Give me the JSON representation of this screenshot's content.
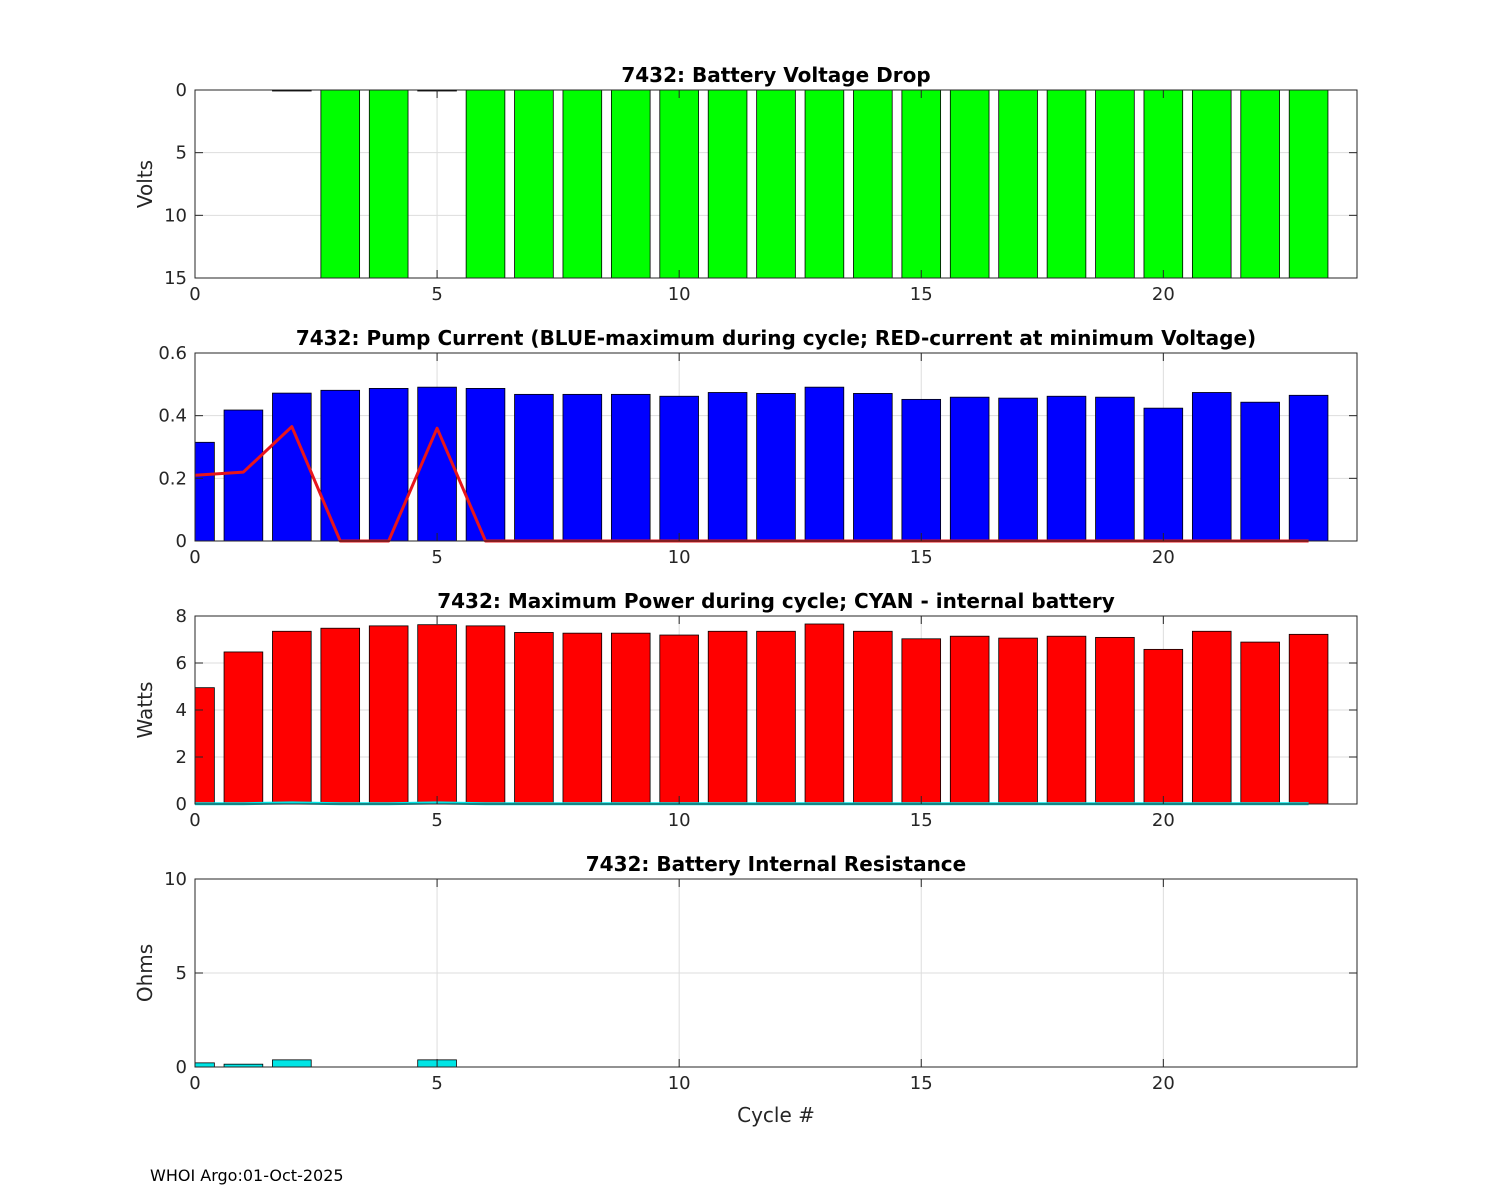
{
  "footer": "WHOI Argo:01-Oct-2025",
  "colors": {
    "voltage": "#00ff00",
    "pump": "#0000ff",
    "pump_line": "#e8151b",
    "power": "#ff0000",
    "power_line": "#00e5e5",
    "resistance": "#00e5e5",
    "grid": "#dddddd",
    "axis": "#262626"
  },
  "chart_data": [
    {
      "id": "voltage",
      "type": "bar",
      "title": "7432: Battery Voltage Drop",
      "xlabel": "",
      "ylabel": "Volts",
      "xlim": [
        0,
        24
      ],
      "ylim": [
        0,
        15
      ],
      "y_reversed": true,
      "xticks": [
        0,
        5,
        10,
        15,
        20
      ],
      "yticks": [
        0,
        5,
        10,
        15
      ],
      "grid": true,
      "x": [
        0,
        1,
        2,
        3,
        4,
        5,
        6,
        7,
        8,
        9,
        10,
        11,
        12,
        13,
        14,
        15,
        16,
        17,
        18,
        19,
        20,
        21,
        22,
        23
      ],
      "values": [
        0,
        0,
        0.05,
        15,
        15,
        0.05,
        15,
        15,
        15,
        15,
        15,
        15,
        15,
        15,
        15,
        15,
        15,
        15,
        15,
        15,
        15,
        15,
        15,
        15
      ]
    },
    {
      "id": "pump",
      "type": "bar",
      "title": "7432: Pump Current (BLUE-maximum during cycle; RED-current at minimum Voltage)",
      "xlabel": "",
      "ylabel": "",
      "xlim": [
        0,
        24
      ],
      "ylim": [
        0,
        0.6
      ],
      "xticks": [
        0,
        5,
        10,
        15,
        20
      ],
      "yticks": [
        0,
        0.2,
        0.4,
        0.6
      ],
      "ytick_labels": [
        "0",
        "0.2",
        "0.4",
        "0.6"
      ],
      "grid": true,
      "x": [
        0,
        1,
        2,
        3,
        4,
        5,
        6,
        7,
        8,
        9,
        10,
        11,
        12,
        13,
        14,
        15,
        16,
        17,
        18,
        19,
        20,
        21,
        22,
        23
      ],
      "values": [
        0.315,
        0.418,
        0.472,
        0.481,
        0.487,
        0.491,
        0.487,
        0.468,
        0.468,
        0.468,
        0.462,
        0.474,
        0.471,
        0.491,
        0.471,
        0.452,
        0.459,
        0.456,
        0.462,
        0.459,
        0.424,
        0.474,
        0.443,
        0.465
      ],
      "line": {
        "name": "current at minimum Voltage",
        "values": [
          0.21,
          0.22,
          0.365,
          0,
          0,
          0.36,
          0,
          0,
          0,
          0,
          0,
          0,
          0,
          0,
          0,
          0,
          0,
          0,
          0,
          0,
          0,
          0,
          0,
          0
        ]
      }
    },
    {
      "id": "power",
      "type": "bar",
      "title": "7432: Maximum Power during cycle; CYAN - internal battery",
      "xlabel": "",
      "ylabel": "Watts",
      "xlim": [
        0,
        24
      ],
      "ylim": [
        0,
        8
      ],
      "xticks": [
        0,
        5,
        10,
        15,
        20
      ],
      "yticks": [
        0,
        2,
        4,
        6,
        8
      ],
      "grid": true,
      "x": [
        0,
        1,
        2,
        3,
        4,
        5,
        6,
        7,
        8,
        9,
        10,
        11,
        12,
        13,
        14,
        15,
        16,
        17,
        18,
        19,
        20,
        21,
        22,
        23
      ],
      "values": [
        4.95,
        6.47,
        7.35,
        7.48,
        7.58,
        7.63,
        7.58,
        7.3,
        7.27,
        7.27,
        7.19,
        7.35,
        7.35,
        7.66,
        7.35,
        7.03,
        7.14,
        7.06,
        7.14,
        7.09,
        6.58,
        7.35,
        6.89,
        7.22
      ],
      "line": {
        "name": "internal battery",
        "values": [
          0.01,
          0.01,
          0.05,
          0.01,
          0.01,
          0.05,
          0.01,
          0.01,
          0.01,
          0.01,
          0.01,
          0.01,
          0.01,
          0.01,
          0.01,
          0.01,
          0.01,
          0.01,
          0.01,
          0.01,
          0.01,
          0.01,
          0.01,
          0.01
        ]
      }
    },
    {
      "id": "resistance",
      "type": "bar",
      "title": "7432: Battery Internal Resistance",
      "xlabel": "Cycle #",
      "ylabel": "Ohms",
      "xlim": [
        0,
        24
      ],
      "ylim": [
        0,
        10
      ],
      "xticks": [
        0,
        5,
        10,
        15,
        20
      ],
      "yticks": [
        0,
        5,
        10
      ],
      "grid": true,
      "x": [
        0,
        1,
        2,
        3,
        4,
        5,
        6,
        7,
        8,
        9,
        10,
        11,
        12,
        13,
        14,
        15,
        16,
        17,
        18,
        19,
        20,
        21,
        22,
        23
      ],
      "values": [
        0.22,
        0.15,
        0.38,
        0,
        0,
        0.38,
        0,
        0,
        0,
        0,
        0,
        0,
        0,
        0,
        0,
        0,
        0,
        0,
        0,
        0,
        0,
        0,
        0,
        0
      ]
    }
  ]
}
